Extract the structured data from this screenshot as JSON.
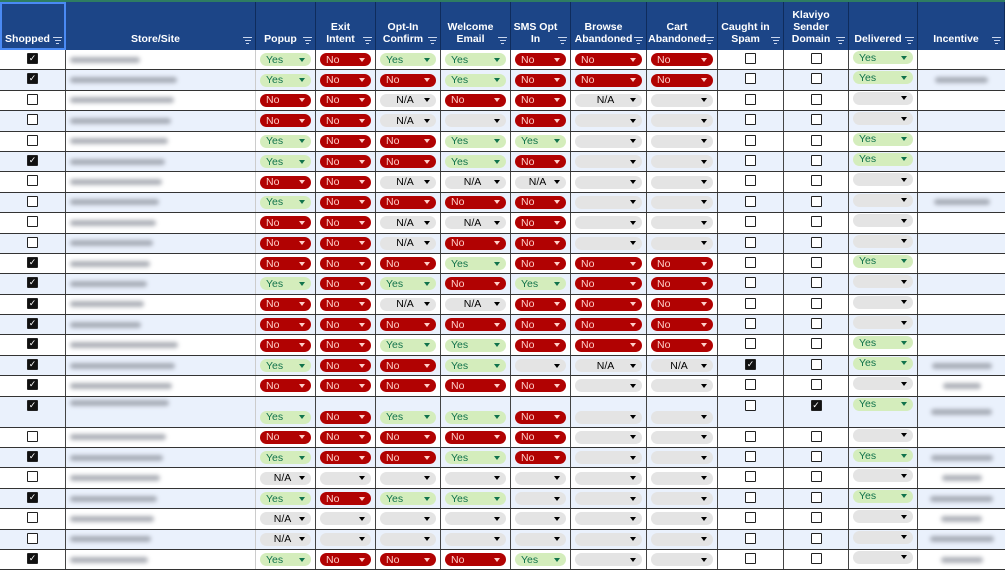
{
  "columns": [
    "Shopped",
    "Store/Site",
    "Popup",
    "Exit Intent",
    "Opt-In Confirm",
    "Welcome Email",
    "SMS Opt In",
    "Browse Abandoned",
    "Cart Abandoned",
    "Caught in Spam",
    "Klaviyo Sender Domain",
    "Delivered",
    "Incentive"
  ],
  "colors": {
    "header": "#1c4587",
    "yes_bg": "#d4edbc",
    "yes_text": "#11734b",
    "no_bg": "#b10202",
    "no_text": "#ffcfc9",
    "na_bg": "#e4e4e4",
    "alt_row": "#eaf1fc"
  },
  "rows": [
    {
      "shopped": true,
      "v": [
        "Yes",
        "No",
        "Yes",
        "Yes",
        "No",
        "No",
        "No"
      ],
      "spam": false,
      "klaviyo": false,
      "delivered": "Yes",
      "incentive": false
    },
    {
      "shopped": true,
      "v": [
        "Yes",
        "No",
        "No",
        "Yes",
        "No",
        "No",
        "No"
      ],
      "spam": false,
      "klaviyo": false,
      "delivered": "Yes",
      "incentive": true
    },
    {
      "shopped": false,
      "v": [
        "No",
        "No",
        "N/A",
        "No",
        "No",
        "N/A",
        ""
      ],
      "spam": false,
      "klaviyo": false,
      "delivered": "",
      "incentive": false
    },
    {
      "shopped": false,
      "v": [
        "No",
        "No",
        "N/A",
        "",
        "No",
        "",
        ""
      ],
      "spam": false,
      "klaviyo": false,
      "delivered": "",
      "incentive": false
    },
    {
      "shopped": false,
      "v": [
        "Yes",
        "No",
        "No",
        "Yes",
        "Yes",
        "",
        ""
      ],
      "spam": false,
      "klaviyo": false,
      "delivered": "Yes",
      "incentive": false
    },
    {
      "shopped": true,
      "v": [
        "Yes",
        "No",
        "No",
        "Yes",
        "No",
        "",
        ""
      ],
      "spam": false,
      "klaviyo": false,
      "delivered": "Yes",
      "incentive": false
    },
    {
      "shopped": false,
      "v": [
        "No",
        "No",
        "N/A",
        "N/A",
        "N/A",
        "",
        ""
      ],
      "spam": false,
      "klaviyo": false,
      "delivered": "",
      "incentive": false
    },
    {
      "shopped": false,
      "v": [
        "Yes",
        "No",
        "No",
        "No",
        "No",
        "",
        ""
      ],
      "spam": false,
      "klaviyo": false,
      "delivered": "",
      "incentive": true
    },
    {
      "shopped": false,
      "v": [
        "No",
        "No",
        "N/A",
        "N/A",
        "No",
        "",
        ""
      ],
      "spam": false,
      "klaviyo": false,
      "delivered": "",
      "incentive": false
    },
    {
      "shopped": false,
      "v": [
        "No",
        "No",
        "N/A",
        "No",
        "No",
        "",
        ""
      ],
      "spam": false,
      "klaviyo": false,
      "delivered": "",
      "incentive": false
    },
    {
      "shopped": true,
      "v": [
        "No",
        "No",
        "No",
        "Yes",
        "No",
        "No",
        "No"
      ],
      "spam": false,
      "klaviyo": false,
      "delivered": "Yes",
      "incentive": false
    },
    {
      "shopped": true,
      "v": [
        "Yes",
        "No",
        "Yes",
        "No",
        "Yes",
        "No",
        "No"
      ],
      "spam": false,
      "klaviyo": false,
      "delivered": "",
      "incentive": false
    },
    {
      "shopped": true,
      "v": [
        "No",
        "No",
        "N/A",
        "N/A",
        "No",
        "No",
        "No"
      ],
      "spam": false,
      "klaviyo": false,
      "delivered": "",
      "incentive": false
    },
    {
      "shopped": true,
      "v": [
        "No",
        "No",
        "No",
        "No",
        "No",
        "No",
        "No"
      ],
      "spam": false,
      "klaviyo": false,
      "delivered": "",
      "incentive": false
    },
    {
      "shopped": true,
      "v": [
        "No",
        "No",
        "Yes",
        "Yes",
        "No",
        "No",
        "No"
      ],
      "spam": false,
      "klaviyo": false,
      "delivered": "Yes",
      "incentive": false
    },
    {
      "shopped": true,
      "v": [
        "Yes",
        "No",
        "No",
        "Yes",
        "",
        "N/A",
        "N/A"
      ],
      "spam": true,
      "klaviyo": false,
      "delivered": "Yes",
      "incentive": true
    },
    {
      "shopped": true,
      "v": [
        "No",
        "No",
        "No",
        "No",
        "No",
        "",
        ""
      ],
      "spam": false,
      "klaviyo": false,
      "delivered": "",
      "incentive": true
    },
    {
      "shopped": true,
      "v": [
        "Yes",
        "No",
        "Yes",
        "Yes",
        "No",
        "",
        ""
      ],
      "spam": false,
      "klaviyo": true,
      "delivered": "Yes",
      "incentive": true,
      "tall": true
    },
    {
      "shopped": false,
      "v": [
        "No",
        "No",
        "No",
        "No",
        "No",
        "",
        ""
      ],
      "spam": false,
      "klaviyo": false,
      "delivered": "",
      "incentive": false
    },
    {
      "shopped": true,
      "v": [
        "Yes",
        "No",
        "No",
        "Yes",
        "No",
        "",
        ""
      ],
      "spam": false,
      "klaviyo": false,
      "delivered": "Yes",
      "incentive": true
    },
    {
      "shopped": false,
      "v": [
        "N/A",
        "",
        "",
        "",
        "",
        "",
        ""
      ],
      "spam": false,
      "klaviyo": false,
      "delivered": "",
      "incentive": true
    },
    {
      "shopped": true,
      "v": [
        "Yes",
        "No",
        "Yes",
        "Yes",
        "",
        "",
        ""
      ],
      "spam": false,
      "klaviyo": false,
      "delivered": "Yes",
      "incentive": true
    },
    {
      "shopped": false,
      "v": [
        "N/A",
        "",
        "",
        "",
        "",
        "",
        ""
      ],
      "spam": false,
      "klaviyo": false,
      "delivered": "",
      "incentive": true
    },
    {
      "shopped": false,
      "v": [
        "N/A",
        "",
        "",
        "",
        "",
        "",
        ""
      ],
      "spam": false,
      "klaviyo": false,
      "delivered": "",
      "incentive": true
    },
    {
      "shopped": true,
      "v": [
        "Yes",
        "No",
        "No",
        "No",
        "Yes",
        "",
        ""
      ],
      "spam": false,
      "klaviyo": false,
      "delivered": "",
      "incentive": true
    }
  ]
}
